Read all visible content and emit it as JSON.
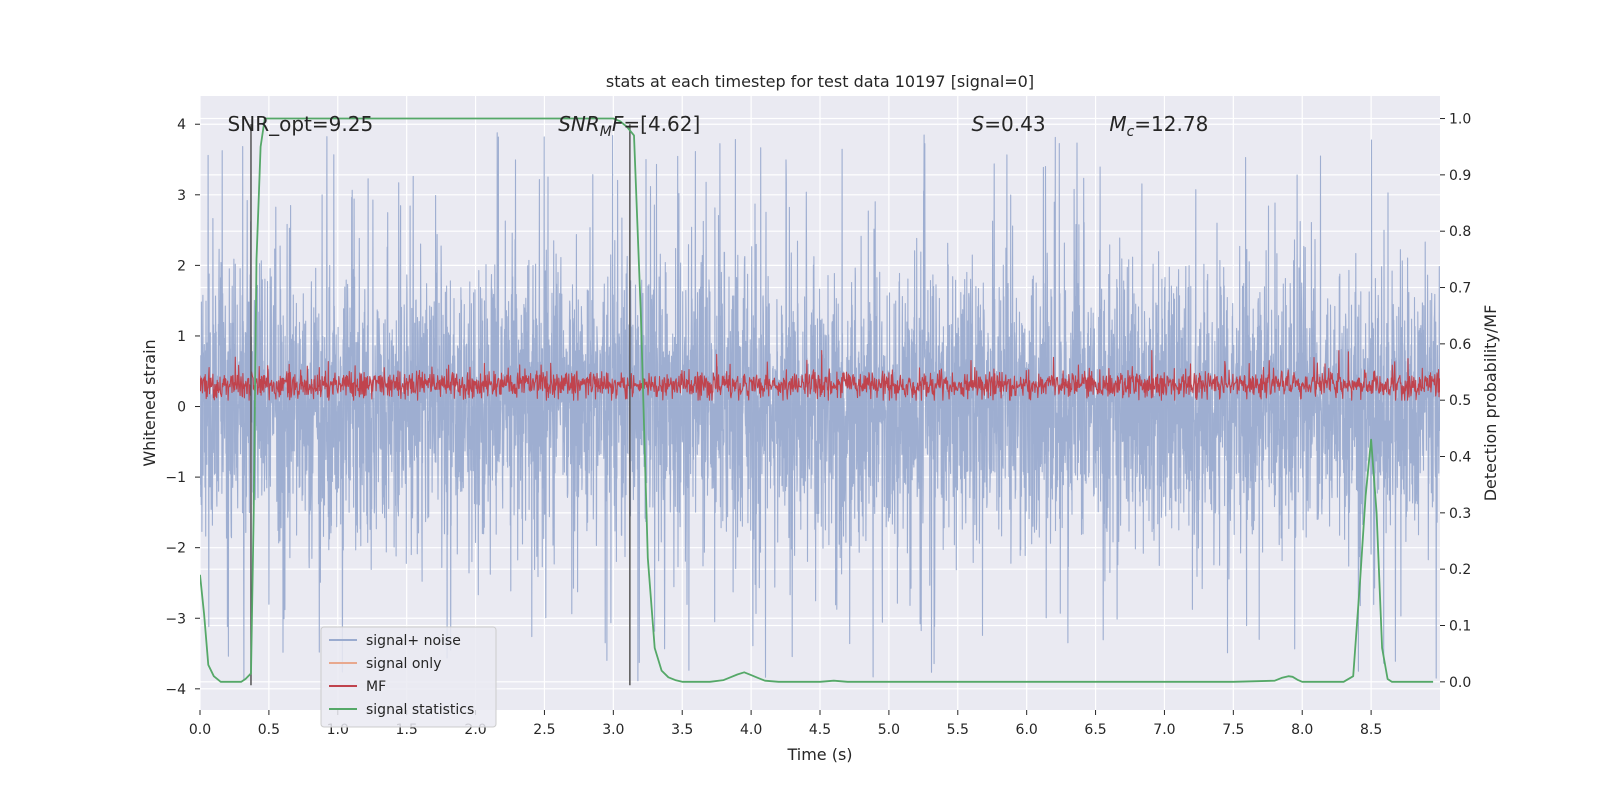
{
  "chart_data": {
    "type": "line",
    "title": "stats at each timestep for test data 10197 [signal=0]",
    "xlabel": "Time (s)",
    "ylabel_left": "Whitened strain",
    "ylabel_right": "Detection probability/MF",
    "xlim": [
      0.0,
      9.0
    ],
    "ylim_left": [
      -4.3,
      4.4
    ],
    "ylim_right": [
      -0.05,
      1.04
    ],
    "xticks": [
      0.0,
      0.5,
      1.0,
      1.5,
      2.0,
      2.5,
      3.0,
      3.5,
      4.0,
      4.5,
      5.0,
      5.5,
      6.0,
      6.5,
      7.0,
      7.5,
      8.0,
      8.5
    ],
    "xtick_labels": [
      "0.0",
      "0.5",
      "1.0",
      "1.5",
      "2.0",
      "2.5",
      "3.0",
      "3.5",
      "4.0",
      "4.5",
      "5.0",
      "5.5",
      "6.0",
      "6.5",
      "7.0",
      "7.5",
      "8.0",
      "8.5"
    ],
    "yticks_left": [
      -4,
      -3,
      -2,
      -1,
      0,
      1,
      2,
      3,
      4
    ],
    "ytick_labels_left": [
      "−4",
      "−3",
      "−2",
      "−1",
      "0",
      "1",
      "2",
      "3",
      "4"
    ],
    "yticks_right": [
      0.0,
      0.1,
      0.2,
      0.3,
      0.4,
      0.5,
      0.6,
      0.7,
      0.8,
      0.9,
      1.0
    ],
    "ytick_labels_right": [
      "0.0",
      "0.1",
      "0.2",
      "0.3",
      "0.4",
      "0.5",
      "0.6",
      "0.7",
      "0.8",
      "0.9",
      "1.0"
    ],
    "grid": true,
    "annotations": [
      {
        "label": "SNR_opt=9.25",
        "x": 0.2,
        "y": 4.0
      },
      {
        "label": "SNR_MF=[4.62]",
        "x": 2.6,
        "y": 4.0
      },
      {
        "label": "S=0.43",
        "x": 5.6,
        "y": 4.0
      },
      {
        "label": "M_c=12.78",
        "x": 6.6,
        "y": 4.0
      }
    ],
    "vlines": [
      0.37,
      3.12
    ],
    "vline_range": [
      -3.95,
      4.0
    ],
    "legend": {
      "placement": "lower-left",
      "entries": [
        {
          "label": "signal+ noise",
          "color": "#9aabcf"
        },
        {
          "label": "signal only",
          "color": "#e8a88e"
        },
        {
          "label": "MF",
          "color": "#c0434d"
        },
        {
          "label": "signal statistics",
          "color": "#55a868"
        }
      ]
    },
    "series": [
      {
        "name": "signal+ noise",
        "axis": "left",
        "color": "#9aabcf",
        "style": "dense noise, range approx -3.9 to 4.0, envelope approx ±2.0"
      },
      {
        "name": "MF",
        "axis": "right",
        "color": "#c0434d",
        "style": "noise band approx 0.50 to 0.56, peaks up to 0.58"
      },
      {
        "name": "signal statistics",
        "axis": "right",
        "color": "#55a868",
        "x": [
          0.0,
          0.03,
          0.06,
          0.1,
          0.15,
          0.2,
          0.3,
          0.33,
          0.37,
          0.39,
          0.41,
          0.44,
          0.47,
          0.5,
          0.7,
          1.0,
          1.5,
          2.0,
          2.5,
          3.0,
          3.05,
          3.1,
          3.15,
          3.2,
          3.25,
          3.3,
          3.35,
          3.4,
          3.45,
          3.5,
          3.6,
          3.7,
          3.8,
          3.85,
          3.9,
          3.95,
          4.0,
          4.05,
          4.1,
          4.2,
          4.3,
          4.5,
          4.6,
          4.7,
          5.0,
          6.0,
          7.0,
          7.5,
          7.8,
          7.85,
          7.9,
          7.93,
          7.97,
          8.0,
          8.1,
          8.3,
          8.37,
          8.42,
          8.46,
          8.5,
          8.54,
          8.58,
          8.62,
          8.65,
          8.7,
          8.8,
          8.9,
          8.95
        ],
        "values": [
          0.19,
          0.12,
          0.03,
          0.01,
          0.0,
          0.0,
          0.0,
          0.005,
          0.015,
          0.3,
          0.75,
          0.95,
          1.0,
          1.0,
          1.0,
          1.0,
          1.0,
          1.0,
          1.0,
          1.0,
          0.995,
          0.985,
          0.97,
          0.65,
          0.22,
          0.06,
          0.02,
          0.008,
          0.003,
          0.0,
          0.0,
          0.0,
          0.003,
          0.008,
          0.013,
          0.017,
          0.012,
          0.007,
          0.002,
          0.0,
          0.0,
          0.0,
          0.002,
          0.0,
          0.0,
          0.0,
          0.0,
          0.0,
          0.002,
          0.007,
          0.01,
          0.009,
          0.003,
          0.0,
          0.0,
          0.0,
          0.01,
          0.18,
          0.33,
          0.43,
          0.3,
          0.06,
          0.005,
          0.0,
          0.0,
          0.0,
          0.0,
          0.0
        ]
      }
    ]
  }
}
